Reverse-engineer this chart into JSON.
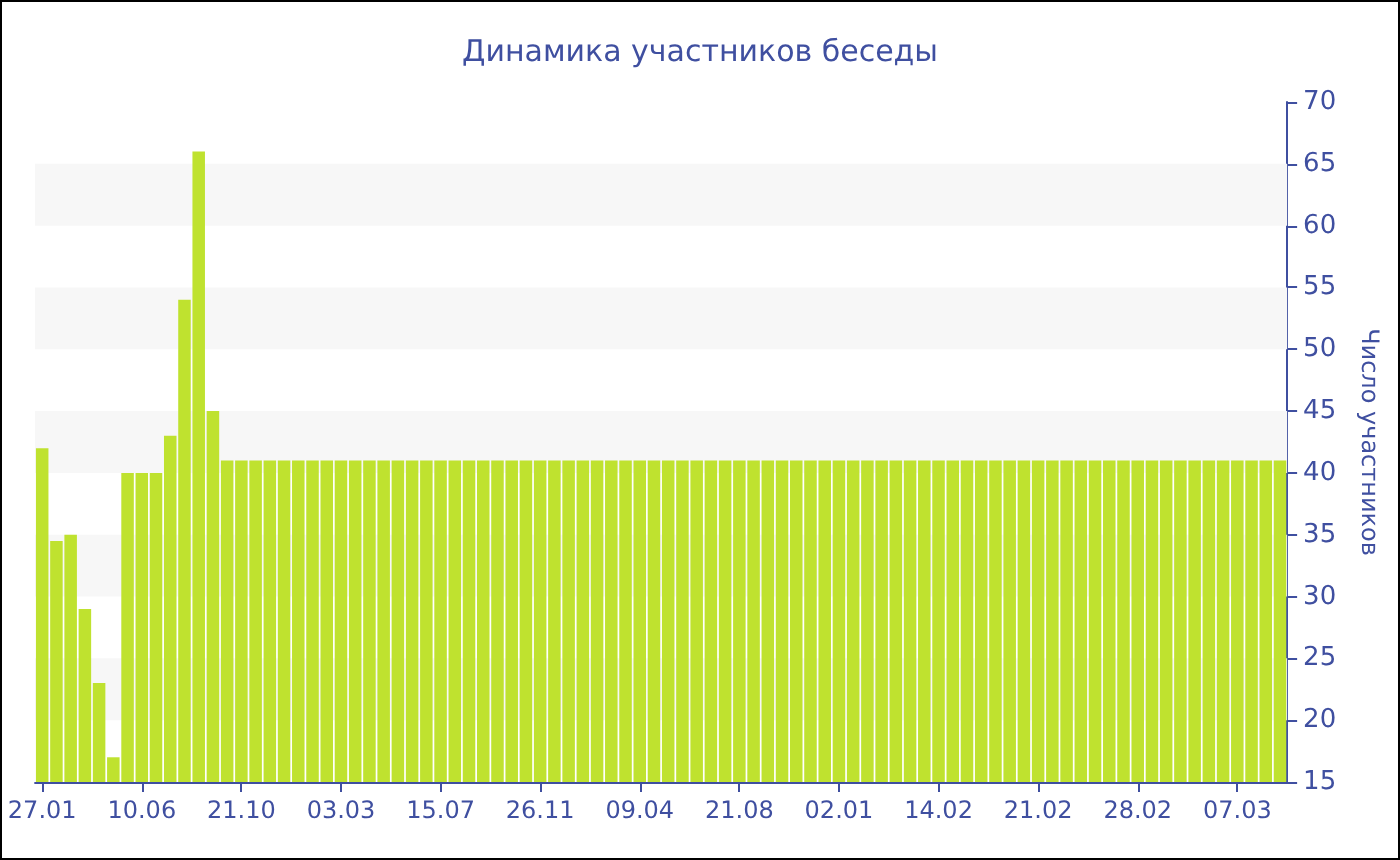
{
  "chart_data": {
    "type": "bar",
    "title": "Динамика участников беседы",
    "ylabel": "Число участников",
    "categories": [
      "27.01",
      null,
      null,
      null,
      null,
      null,
      null,
      "10.06",
      null,
      null,
      null,
      null,
      null,
      null,
      "21.10",
      null,
      null,
      null,
      null,
      null,
      null,
      "03.03",
      null,
      null,
      null,
      null,
      null,
      null,
      "15.07",
      null,
      null,
      null,
      null,
      null,
      null,
      "26.11",
      null,
      null,
      null,
      null,
      null,
      null,
      "09.04",
      null,
      null,
      null,
      null,
      null,
      null,
      "21.08",
      null,
      null,
      null,
      null,
      null,
      null,
      "02.01",
      null,
      null,
      null,
      null,
      null,
      null,
      "14.02",
      null,
      null,
      null,
      null,
      null,
      null,
      "21.02",
      null,
      null,
      null,
      null,
      null,
      null,
      "28.02",
      null,
      null,
      null,
      null,
      null,
      null,
      "07.03",
      null,
      null,
      null
    ],
    "values": [
      42,
      34.5,
      35,
      29,
      23,
      17,
      40,
      40,
      40,
      43,
      54,
      66,
      45,
      41,
      41,
      41,
      41,
      41,
      41,
      41,
      41,
      41,
      41,
      41,
      41,
      41,
      41,
      41,
      41,
      41,
      41,
      41,
      41,
      41,
      41,
      41,
      41,
      41,
      41,
      41,
      41,
      41,
      41,
      41,
      41,
      41,
      41,
      41,
      41,
      41,
      41,
      41,
      41,
      41,
      41,
      41,
      41,
      41,
      41,
      41,
      41,
      41,
      41,
      41,
      41,
      41,
      41,
      41,
      41,
      41,
      41,
      41,
      41,
      41,
      41,
      41,
      41,
      41,
      41,
      41,
      41,
      41,
      41,
      41,
      41,
      41,
      41,
      41
    ],
    "color": "#bfe22f",
    "ylim": [
      15,
      70
    ],
    "yticks": [
      15,
      20,
      25,
      30,
      35,
      40,
      45,
      50,
      55,
      60,
      65,
      70
    ],
    "bands": [
      {
        "axis": "y",
        "from": 60,
        "to": 65,
        "color": "#f7f7f7"
      },
      {
        "axis": "y",
        "from": 50,
        "to": 55,
        "color": "#f7f7f7"
      },
      {
        "axis": "y",
        "from": 40,
        "to": 45,
        "color": "#f7f7f7"
      },
      {
        "axis": "y",
        "from": 30,
        "to": 35,
        "color": "#f7f7f7"
      },
      {
        "axis": "y",
        "from": 20,
        "to": 25,
        "color": "#f7f7f7"
      }
    ]
  }
}
